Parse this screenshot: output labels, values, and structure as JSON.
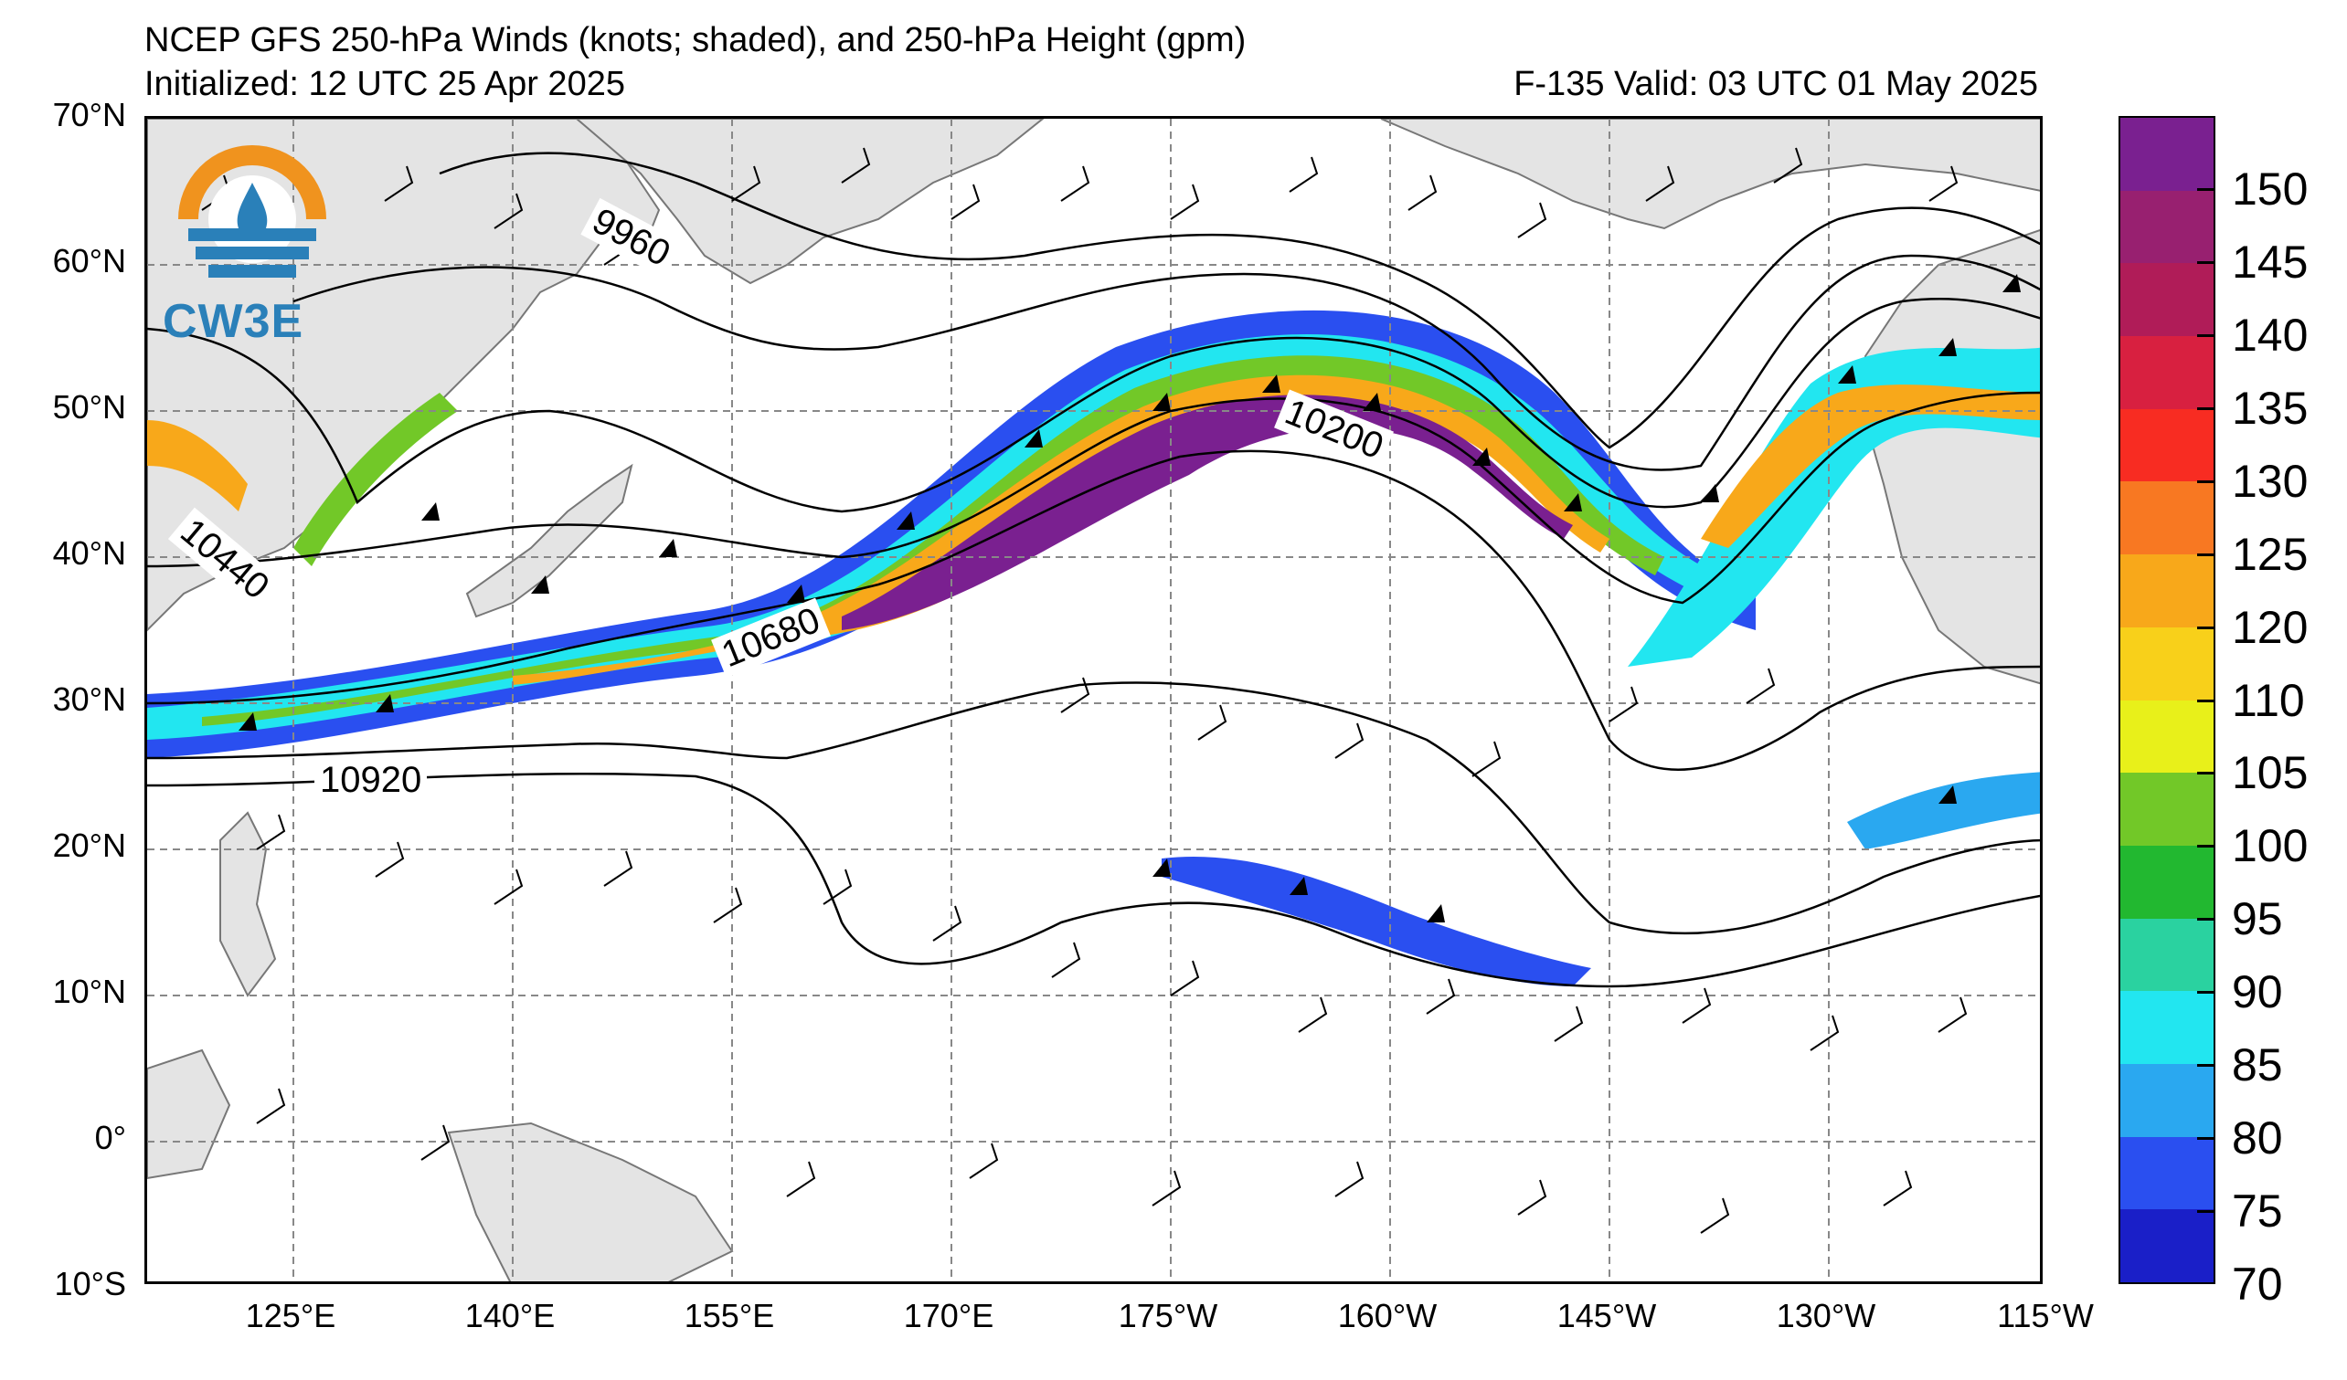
{
  "header": {
    "title": "NCEP GFS 250-hPa Winds (knots; shaded), and 250-hPa Height (gpm)",
    "initialized": "Initialized: 12 UTC 25 Apr 2025",
    "valid": "F-135  Valid: 03 UTC 01 May 2025"
  },
  "logo": {
    "text": "CW3E"
  },
  "axes": {
    "lat_labels": [
      "70°N",
      "60°N",
      "50°N",
      "40°N",
      "30°N",
      "20°N",
      "10°N",
      "0°",
      "10°S"
    ],
    "lon_labels": [
      "125°E",
      "140°E",
      "155°E",
      "170°E",
      "175°W",
      "160°W",
      "145°W",
      "130°W",
      "115°W"
    ]
  },
  "contour_labels": [
    "9960",
    "10200",
    "10440",
    "10680",
    "10920"
  ],
  "colorbar": {
    "ticks": [
      "70",
      "75",
      "80",
      "85",
      "90",
      "95",
      "100",
      "105",
      "110",
      "120",
      "125",
      "130",
      "135",
      "140",
      "145",
      "150"
    ],
    "colors": [
      "#1a1fc8",
      "#2a4ff0",
      "#2aa8f0",
      "#22e6f0",
      "#2ad2a0",
      "#22b830",
      "#72c828",
      "#e8f01a",
      "#f8d01a",
      "#f8a81a",
      "#f87822",
      "#f82c22",
      "#d82040",
      "#b01c58",
      "#982070",
      "#7a2090"
    ]
  },
  "legend_colors": {
    "land": "#e4e4e4",
    "ocean": "#ffffff",
    "grid": "#888888"
  }
}
